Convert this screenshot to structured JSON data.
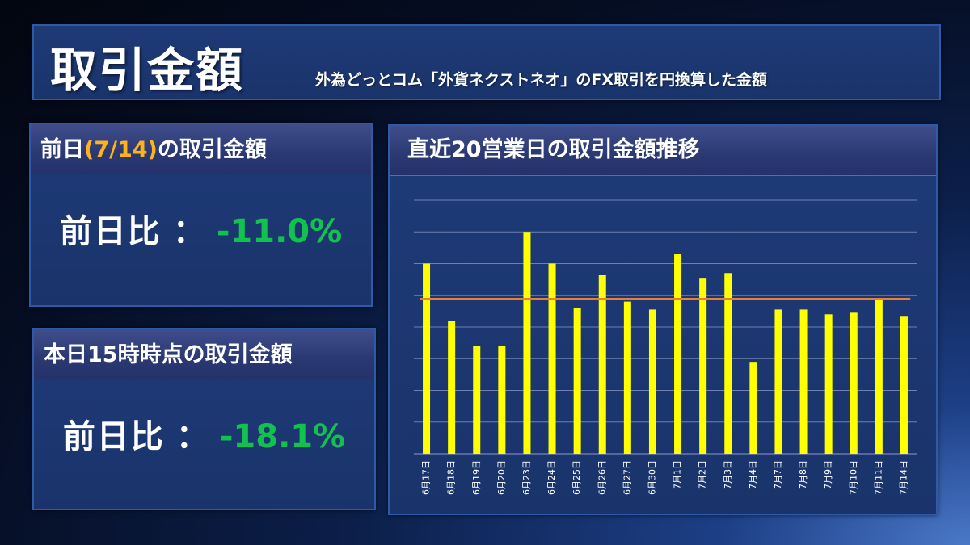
{
  "title": {
    "main": "取引金額",
    "subtitle": "外為どっとコム「外貨ネクストネオ」のFX取引を円換算した金額"
  },
  "prev_day_box": {
    "header_prefix": "前日",
    "header_date": "(7/14)",
    "header_suffix": "の取引金額",
    "label": "前日比",
    "colon": "：",
    "value": "-11.0%"
  },
  "today_box": {
    "header": "本日15時時点の取引金額",
    "label": "前日比",
    "colon": "：",
    "value": "-18.1%"
  },
  "colors": {
    "bar": "#ffff00",
    "average_line": "#ed7d31",
    "positive_value": "#12c24e",
    "date_accent": "#ffb21c"
  },
  "chart_data": {
    "type": "bar",
    "title": "直近20営業日の取引金額推移",
    "categories": [
      "6月17日",
      "6月18日",
      "6月19日",
      "6月20日",
      "6月23日",
      "6月24日",
      "6月25日",
      "6月26日",
      "6月27日",
      "6月30日",
      "7月1日",
      "7月2日",
      "7月3日",
      "7月4日",
      "7月7日",
      "7月8日",
      "7月9日",
      "7月10日",
      "7月11日",
      "7月14日"
    ],
    "values": [
      6.0,
      4.2,
      3.4,
      3.4,
      7.0,
      6.0,
      4.6,
      5.65,
      4.8,
      4.55,
      6.3,
      5.55,
      5.7,
      2.9,
      4.55,
      4.55,
      4.4,
      4.45,
      4.85,
      4.35
    ],
    "average": 4.88,
    "ylim": [
      0,
      8
    ],
    "gridlines": 8,
    "show_y_tick_labels": false,
    "grid": true,
    "legend": "none"
  }
}
